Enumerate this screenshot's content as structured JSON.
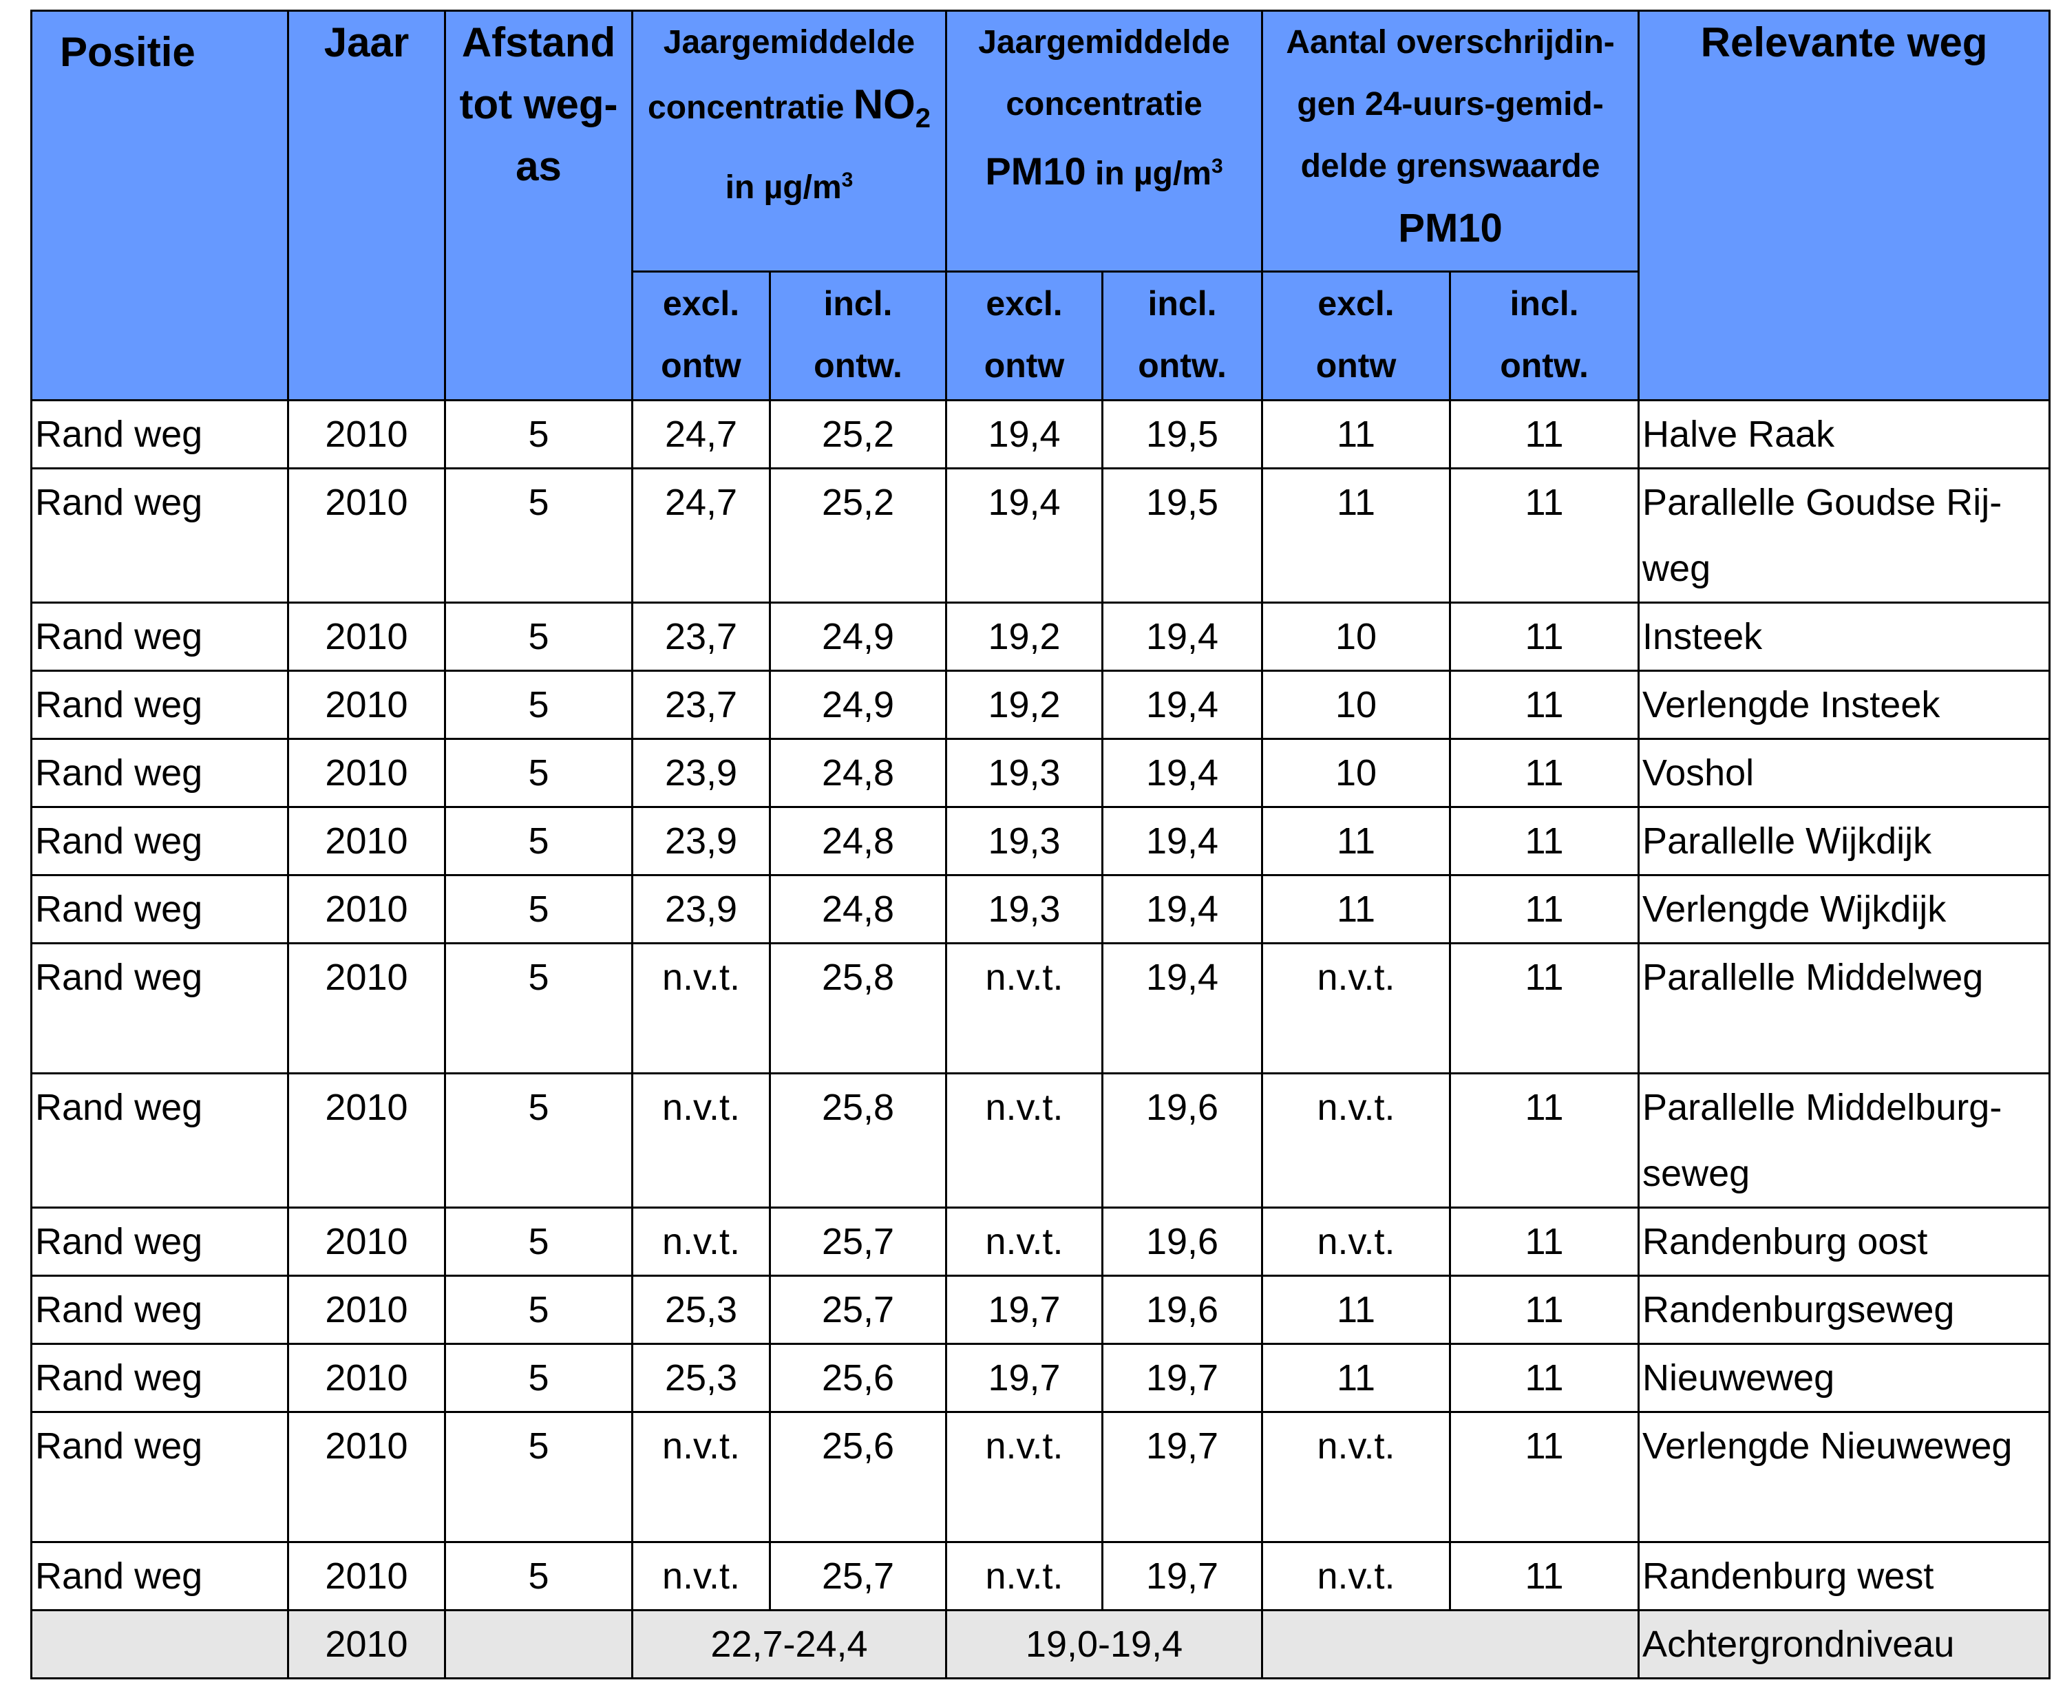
{
  "header": {
    "positie": "Positie",
    "jaar": "Jaar",
    "afstand": [
      "Afstand",
      "tot weg-",
      "as"
    ],
    "no2": {
      "line1": "Jaargemiddelde",
      "line2_prefix": "concentratie ",
      "line2_bold": "NO",
      "line2_sub": "2",
      "line3": "in µg/m",
      "line3_sup": "3"
    },
    "pm10": {
      "line1": "Jaargemiddelde",
      "line2": "concentratie",
      "line3_bold": "PM10",
      "line3_rest": " in µg/m",
      "line3_sup": "3"
    },
    "overschrijdingen": {
      "line1": "Aantal overschrijdin-",
      "line2": "gen 24-uurs-gemid-",
      "line3": "delde grenswaarde",
      "line4": "PM10"
    },
    "relevante_weg": "Relevante weg",
    "sub": {
      "excl": [
        "excl.",
        "ontw"
      ],
      "incl": [
        "incl.",
        "ontw."
      ]
    }
  },
  "rows": [
    {
      "positie": "Rand weg",
      "jaar": "2010",
      "afstand": "5",
      "no2_excl": "24,7",
      "no2_incl": "25,2",
      "pm10_excl": "19,4",
      "pm10_incl": "19,5",
      "ov_excl": "11",
      "ov_incl": "11",
      "weg": "Halve Raak"
    },
    {
      "positie": "Rand weg",
      "jaar": "2010",
      "afstand": "5",
      "no2_excl": "24,7",
      "no2_incl": "25,2",
      "pm10_excl": "19,4",
      "pm10_incl": "19,5",
      "ov_excl": "11",
      "ov_incl": "11",
      "weg": "Parallelle Goudse Rij-",
      "weg2": "weg"
    },
    {
      "positie": "Rand weg",
      "jaar": "2010",
      "afstand": "5",
      "no2_excl": "23,7",
      "no2_incl": "24,9",
      "pm10_excl": "19,2",
      "pm10_incl": "19,4",
      "ov_excl": "10",
      "ov_incl": "11",
      "weg": "Insteek"
    },
    {
      "positie": "Rand weg",
      "jaar": "2010",
      "afstand": "5",
      "no2_excl": "23,7",
      "no2_incl": "24,9",
      "pm10_excl": "19,2",
      "pm10_incl": "19,4",
      "ov_excl": "10",
      "ov_incl": "11",
      "weg": "Verlengde Insteek"
    },
    {
      "positie": "Rand weg",
      "jaar": "2010",
      "afstand": "5",
      "no2_excl": "23,9",
      "no2_incl": "24,8",
      "pm10_excl": "19,3",
      "pm10_incl": "19,4",
      "ov_excl": "10",
      "ov_incl": "11",
      "weg": "Voshol"
    },
    {
      "positie": "Rand weg",
      "jaar": "2010",
      "afstand": "5",
      "no2_excl": "23,9",
      "no2_incl": "24,8",
      "pm10_excl": "19,3",
      "pm10_incl": "19,4",
      "ov_excl": "11",
      "ov_incl": "11",
      "weg": "Parallelle Wijkdijk"
    },
    {
      "positie": "Rand weg",
      "jaar": "2010",
      "afstand": "5",
      "no2_excl": "23,9",
      "no2_incl": "24,8",
      "pm10_excl": "19,3",
      "pm10_incl": "19,4",
      "ov_excl": "11",
      "ov_incl": "11",
      "weg": "Verlengde Wijkdijk"
    },
    {
      "positie": "Rand weg",
      "jaar": "2010",
      "afstand": "5",
      "no2_excl": "n.v.t.",
      "no2_incl": "25,8",
      "pm10_excl": "n.v.t.",
      "pm10_incl": "19,4",
      "ov_excl": "n.v.t.",
      "ov_incl": "11",
      "weg": "Parallelle Middelweg"
    },
    {
      "positie": "Rand weg",
      "jaar": "2010",
      "afstand": "5",
      "no2_excl": "n.v.t.",
      "no2_incl": "25,8",
      "pm10_excl": "n.v.t.",
      "pm10_incl": "19,6",
      "ov_excl": "n.v.t.",
      "ov_incl": "11",
      "weg": "Parallelle Middelburg-",
      "weg2": "seweg"
    },
    {
      "positie": "Rand weg",
      "jaar": "2010",
      "afstand": "5",
      "no2_excl": "n.v.t.",
      "no2_incl": "25,7",
      "pm10_excl": "n.v.t.",
      "pm10_incl": "19,6",
      "ov_excl": "n.v.t.",
      "ov_incl": "11",
      "weg": "Randenburg oost"
    },
    {
      "positie": "Rand weg",
      "jaar": "2010",
      "afstand": "5",
      "no2_excl": "25,3",
      "no2_incl": "25,7",
      "pm10_excl": "19,7",
      "pm10_incl": "19,6",
      "ov_excl": "11",
      "ov_incl": "11",
      "weg": "Randenburgseweg"
    },
    {
      "positie": "Rand weg",
      "jaar": "2010",
      "afstand": "5",
      "no2_excl": "25,3",
      "no2_incl": "25,6",
      "pm10_excl": "19,7",
      "pm10_incl": "19,7",
      "ov_excl": "11",
      "ov_incl": "11",
      "weg": "Nieuweweg"
    },
    {
      "positie": "Rand weg",
      "jaar": "2010",
      "afstand": "5",
      "no2_excl": "n.v.t.",
      "no2_incl": "25,6",
      "pm10_excl": "n.v.t.",
      "pm10_incl": "19,7",
      "ov_excl": "n.v.t.",
      "ov_incl": "11",
      "weg": "Verlengde Nieuweweg"
    },
    {
      "positie": "Rand weg",
      "jaar": "2010",
      "afstand": "5",
      "no2_excl": "n.v.t.",
      "no2_incl": "25,7",
      "pm10_excl": "n.v.t.",
      "pm10_incl": "19,7",
      "ov_excl": "n.v.t.",
      "ov_incl": "11",
      "weg": "Randenburg west"
    }
  ],
  "background_row": {
    "jaar": "2010",
    "no2": "22,7-24,4",
    "pm10": "19,0-19,4",
    "weg": "Achtergrondniveau"
  }
}
